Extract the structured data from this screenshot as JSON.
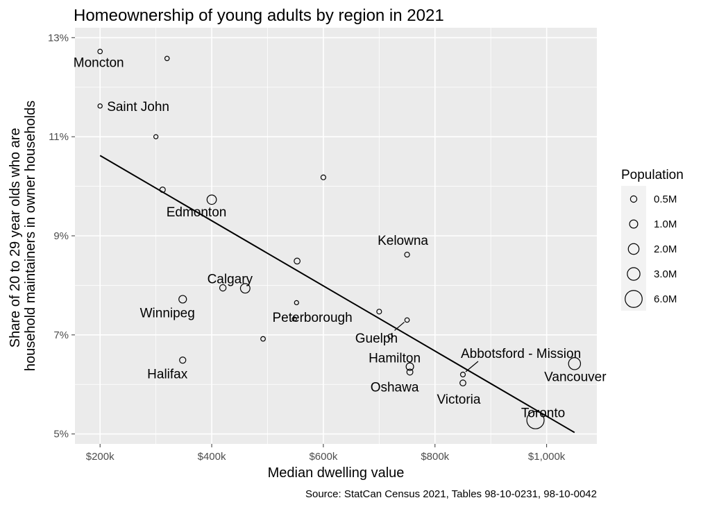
{
  "chart_data": {
    "type": "scatter",
    "title": "Homeownership of young adults by region in 2021",
    "xlabel": "Median dwelling value",
    "ylabel_lines": [
      "Share of 20 to 29 year olds who are",
      "household maintainers in owner households"
    ],
    "caption": "Source: StatCan Census 2021, Tables 98-10-0231, 98-10-0042",
    "xlim": [
      155000,
      1090000
    ],
    "ylim": [
      4.8,
      13.2
    ],
    "x_ticks": [
      {
        "value": 200000,
        "label": "$200k"
      },
      {
        "value": 400000,
        "label": "$400k"
      },
      {
        "value": 600000,
        "label": "$600k"
      },
      {
        "value": 800000,
        "label": "$800k"
      },
      {
        "value": 1000000,
        "label": "$1,000k"
      }
    ],
    "y_ticks": [
      {
        "value": 5,
        "label": "5%"
      },
      {
        "value": 7,
        "label": "7%"
      },
      {
        "value": 9,
        "label": "9%"
      },
      {
        "value": 11,
        "label": "11%"
      },
      {
        "value": 13,
        "label": "13%"
      }
    ],
    "trend_line": {
      "x": [
        200000,
        1050000
      ],
      "y": [
        10.62,
        5.03
      ]
    },
    "points": [
      {
        "name": "Moncton",
        "x": 200000,
        "y": 12.72,
        "pop": 0.16
      },
      {
        "name": "",
        "x": 320000,
        "y": 12.58,
        "pop": 0.15
      },
      {
        "name": "Saint John",
        "x": 200000,
        "y": 11.62,
        "pop": 0.13
      },
      {
        "name": "",
        "x": 300000,
        "y": 11.0,
        "pop": 0.12
      },
      {
        "name": "",
        "x": 312000,
        "y": 9.93,
        "pop": 0.3
      },
      {
        "name": "Edmonton",
        "x": 400000,
        "y": 9.73,
        "pop": 1.42
      },
      {
        "name": "",
        "x": 600000,
        "y": 10.18,
        "pop": 0.2
      },
      {
        "name": "",
        "x": 553000,
        "y": 8.49,
        "pop": 0.4
      },
      {
        "name": "Kelowna",
        "x": 750000,
        "y": 8.62,
        "pop": 0.22
      },
      {
        "name": "",
        "x": 420000,
        "y": 7.95,
        "pop": 0.5
      },
      {
        "name": "Calgary",
        "x": 460000,
        "y": 7.94,
        "pop": 1.48
      },
      {
        "name": "Winnipeg",
        "x": 348000,
        "y": 7.72,
        "pop": 0.83
      },
      {
        "name": "",
        "x": 552000,
        "y": 7.65,
        "pop": 0.12
      },
      {
        "name": "Peterborough",
        "x": 548000,
        "y": 7.32,
        "pop": 0.13
      },
      {
        "name": "",
        "x": 700000,
        "y": 7.47,
        "pop": 0.2
      },
      {
        "name": "",
        "x": 750000,
        "y": 7.3,
        "pop": 0.16
      },
      {
        "name": "Guelph",
        "x": 720000,
        "y": 6.97,
        "pop": 0.17
      },
      {
        "name": "",
        "x": 492000,
        "y": 6.92,
        "pop": 0.17
      },
      {
        "name": "Halifax",
        "x": 348000,
        "y": 6.49,
        "pop": 0.47
      },
      {
        "name": "Hamilton",
        "x": 755000,
        "y": 6.36,
        "pop": 0.79
      },
      {
        "name": "Oshawa",
        "x": 755000,
        "y": 6.25,
        "pop": 0.42
      },
      {
        "name": "Abbotsford - Mission",
        "x": 850000,
        "y": 6.2,
        "pop": 0.2
      },
      {
        "name": "Victoria",
        "x": 850000,
        "y": 6.03,
        "pop": 0.4
      },
      {
        "name": "Vancouver",
        "x": 1050000,
        "y": 6.42,
        "pop": 2.64
      },
      {
        "name": "Toronto",
        "x": 980000,
        "y": 5.28,
        "pop": 6.2
      }
    ],
    "legend": {
      "title": "Population",
      "position": "right",
      "entries": [
        {
          "label": "0.5M",
          "pop": 0.5
        },
        {
          "label": "1.0M",
          "pop": 1.0
        },
        {
          "label": "2.0M",
          "pop": 2.0
        },
        {
          "label": "3.0M",
          "pop": 3.0
        },
        {
          "label": "6.0M",
          "pop": 6.0
        }
      ]
    }
  }
}
